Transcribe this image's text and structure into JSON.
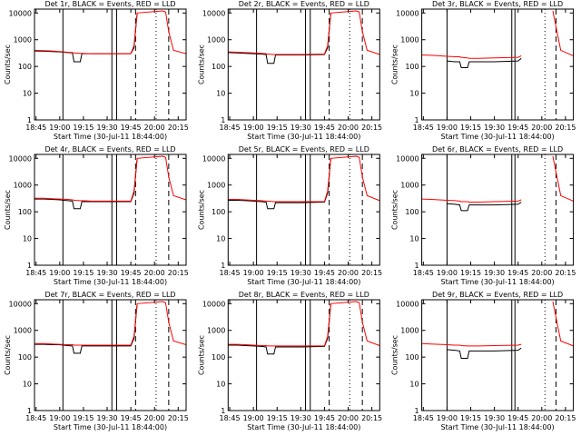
{
  "chart_data": [
    {
      "type": "line",
      "title": "Det 1r, BLACK = Events, RED = LLD",
      "x_label": "Start Time (30-Jul-11 18:44:00)",
      "y_label": "Counts/sec",
      "log_scale": true,
      "xlim": [
        "18:44",
        "20:20"
      ],
      "ylim": [
        1,
        14000
      ],
      "xticks": [
        "18:45",
        "19:00",
        "19:15",
        "19:30",
        "19:45",
        "20:00",
        "20:15"
      ],
      "yticks": [
        1,
        10,
        100,
        1000,
        10000
      ],
      "x": [
        "18:44",
        "18:50",
        "18:55",
        "19:00",
        "19:05",
        "19:08",
        "19:09",
        "19:13",
        "19:14",
        "19:20",
        "19:30",
        "19:45",
        "19:47",
        "19:49",
        "20:05",
        "20:07",
        "20:09",
        "20:12",
        "20:20"
      ],
      "series": [
        {
          "color": "#000000",
          "values": [
            380,
            370,
            360,
            350,
            330,
            320,
            150,
            150,
            300,
            300,
            300,
            300,
            500,
            10000,
            null,
            null,
            null,
            null,
            null
          ]
        },
        {
          "color": "#ff0000",
          "values": [
            400,
            390,
            380,
            360,
            340,
            330,
            320,
            310,
            310,
            300,
            300,
            300,
            600,
            10000,
            12000,
            11000,
            2000,
            400,
            300
          ]
        }
      ],
      "vlines": [
        {
          "x": "19:02",
          "style": "solid"
        },
        {
          "x": "19:33",
          "style": "solid"
        },
        {
          "x": "19:36",
          "style": "solid"
        },
        {
          "x": "19:48",
          "style": "dashed"
        },
        {
          "x": "20:01",
          "style": "dotted"
        },
        {
          "x": "20:09",
          "style": "dashed"
        }
      ]
    },
    {
      "type": "line",
      "title": "Det 2r, BLACK = Events, RED = LLD",
      "x_label": "Start Time (30-Jul-11 18:44:00)",
      "y_label": "Counts/sec",
      "log_scale": true,
      "xlim": [
        "18:44",
        "20:20"
      ],
      "ylim": [
        1,
        14000
      ],
      "xticks": [
        "18:45",
        "19:00",
        "19:15",
        "19:30",
        "19:45",
        "20:00",
        "20:15"
      ],
      "yticks": [
        1,
        10,
        100,
        1000,
        10000
      ],
      "x": [
        "18:44",
        "18:50",
        "18:55",
        "19:00",
        "19:05",
        "19:08",
        "19:09",
        "19:13",
        "19:14",
        "19:20",
        "19:30",
        "19:45",
        "19:47",
        "19:49",
        "20:05",
        "20:07",
        "20:09",
        "20:12",
        "20:20"
      ],
      "series": [
        {
          "color": "#000000",
          "values": [
            330,
            320,
            310,
            300,
            290,
            280,
            130,
            130,
            270,
            270,
            270,
            280,
            500,
            10000,
            null,
            null,
            null,
            null,
            null
          ]
        },
        {
          "color": "#ff0000",
          "values": [
            350,
            340,
            330,
            320,
            310,
            300,
            290,
            280,
            280,
            280,
            280,
            290,
            600,
            10000,
            12000,
            11000,
            2000,
            400,
            280
          ]
        }
      ],
      "vlines": [
        {
          "x": "19:02",
          "style": "solid"
        },
        {
          "x": "19:33",
          "style": "solid"
        },
        {
          "x": "19:36",
          "style": "solid"
        },
        {
          "x": "19:48",
          "style": "dashed"
        },
        {
          "x": "20:01",
          "style": "dotted"
        },
        {
          "x": "20:09",
          "style": "dashed"
        }
      ]
    },
    {
      "type": "line",
      "title": "Det 3r, BLACK = Events, RED = LLD",
      "x_label": "Start Time (30-Jul-11 18:44:00)",
      "y_label": "Counts/sec",
      "log_scale": true,
      "xlim": [
        "18:44",
        "20:20"
      ],
      "ylim": [
        1,
        14000
      ],
      "xticks": [
        "18:45",
        "19:00",
        "19:15",
        "19:30",
        "19:45",
        "20:00",
        "20:15"
      ],
      "yticks": [
        1,
        10,
        100,
        1000,
        10000
      ],
      "x": [
        "18:44",
        "18:50",
        "18:55",
        "19:00",
        "19:05",
        "19:08",
        "19:09",
        "19:13",
        "19:14",
        "19:20",
        "19:30",
        "19:45",
        "19:47",
        "19:49",
        "20:05",
        "20:07",
        "20:09",
        "20:12",
        "20:20"
      ],
      "series": [
        {
          "color": "#000000",
          "values": [
            null,
            null,
            null,
            160,
            150,
            150,
            90,
            90,
            150,
            150,
            150,
            160,
            200,
            null,
            null,
            null,
            null,
            null,
            null
          ]
        },
        {
          "color": "#ff0000",
          "values": [
            270,
            260,
            250,
            240,
            230,
            230,
            220,
            210,
            200,
            200,
            210,
            220,
            250,
            null,
            null,
            12000,
            3000,
            400,
            250
          ]
        }
      ],
      "vlines": [
        {
          "x": "19:00",
          "style": "solid"
        },
        {
          "x": "19:41",
          "style": "solid"
        },
        {
          "x": "19:43",
          "style": "solid"
        },
        {
          "x": "20:02",
          "style": "dotted"
        },
        {
          "x": "20:09",
          "style": "dashed"
        }
      ]
    },
    {
      "type": "line",
      "title": "Det 4r, BLACK = Events, RED = LLD",
      "x_label": "Start Time (30-Jul-11 18:44:00)",
      "y_label": "Counts/sec",
      "log_scale": true,
      "xlim": [
        "18:44",
        "20:20"
      ],
      "ylim": [
        1,
        14000
      ],
      "xticks": [
        "18:45",
        "19:00",
        "19:15",
        "19:30",
        "19:45",
        "20:00",
        "20:15"
      ],
      "yticks": [
        1,
        10,
        100,
        1000,
        10000
      ],
      "x": [
        "18:44",
        "18:50",
        "18:55",
        "19:00",
        "19:05",
        "19:08",
        "19:09",
        "19:13",
        "19:14",
        "19:20",
        "19:30",
        "19:45",
        "19:47",
        "19:49",
        "20:05",
        "20:07",
        "20:09",
        "20:12",
        "20:20"
      ],
      "series": [
        {
          "color": "#000000",
          "values": [
            300,
            300,
            290,
            280,
            260,
            250,
            130,
            130,
            240,
            240,
            240,
            240,
            500,
            10000,
            null,
            null,
            null,
            null,
            null
          ]
        },
        {
          "color": "#ff0000",
          "values": [
            320,
            320,
            310,
            300,
            290,
            280,
            270,
            260,
            260,
            250,
            250,
            250,
            600,
            10000,
            12000,
            11000,
            2000,
            400,
            280
          ]
        }
      ],
      "vlines": [
        {
          "x": "19:02",
          "style": "solid"
        },
        {
          "x": "19:33",
          "style": "solid"
        },
        {
          "x": "19:36",
          "style": "solid"
        },
        {
          "x": "19:48",
          "style": "dashed"
        },
        {
          "x": "20:01",
          "style": "dotted"
        },
        {
          "x": "20:09",
          "style": "dashed"
        }
      ]
    },
    {
      "type": "line",
      "title": "Det 5r, BLACK = Events, RED = LLD",
      "x_label": "Start Time (30-Jul-11 18:44:00)",
      "y_label": "Counts/sec",
      "log_scale": true,
      "xlim": [
        "18:44",
        "20:20"
      ],
      "ylim": [
        1,
        14000
      ],
      "xticks": [
        "18:45",
        "19:00",
        "19:15",
        "19:30",
        "19:45",
        "20:00",
        "20:15"
      ],
      "yticks": [
        1,
        10,
        100,
        1000,
        10000
      ],
      "x": [
        "18:44",
        "18:50",
        "18:55",
        "19:00",
        "19:05",
        "19:08",
        "19:09",
        "19:13",
        "19:14",
        "19:20",
        "19:30",
        "19:45",
        "19:47",
        "19:49",
        "20:05",
        "20:07",
        "20:09",
        "20:12",
        "20:20"
      ],
      "series": [
        {
          "color": "#000000",
          "values": [
            270,
            270,
            260,
            250,
            240,
            230,
            130,
            130,
            220,
            220,
            220,
            230,
            500,
            10000,
            null,
            null,
            null,
            null,
            null
          ]
        },
        {
          "color": "#ff0000",
          "values": [
            290,
            290,
            280,
            270,
            260,
            250,
            250,
            240,
            240,
            240,
            240,
            240,
            600,
            10000,
            12000,
            11000,
            2000,
            400,
            260
          ]
        }
      ],
      "vlines": [
        {
          "x": "19:02",
          "style": "solid"
        },
        {
          "x": "19:33",
          "style": "solid"
        },
        {
          "x": "19:36",
          "style": "solid"
        },
        {
          "x": "19:48",
          "style": "dashed"
        },
        {
          "x": "20:01",
          "style": "dotted"
        },
        {
          "x": "20:09",
          "style": "dashed"
        }
      ]
    },
    {
      "type": "line",
      "title": "Det 6r, BLACK = Events, RED = LLD",
      "x_label": "Start Time (30-Jul-11 18:44:00)",
      "y_label": "Counts/sec",
      "log_scale": true,
      "xlim": [
        "18:44",
        "20:20"
      ],
      "ylim": [
        1,
        14000
      ],
      "xticks": [
        "18:45",
        "19:00",
        "19:15",
        "19:30",
        "19:45",
        "20:00",
        "20:15"
      ],
      "yticks": [
        1,
        10,
        100,
        1000,
        10000
      ],
      "x": [
        "18:44",
        "18:50",
        "18:55",
        "19:00",
        "19:05",
        "19:08",
        "19:09",
        "19:13",
        "19:14",
        "19:20",
        "19:30",
        "19:45",
        "19:47",
        "19:49",
        "20:05",
        "20:07",
        "20:09",
        "20:12",
        "20:20"
      ],
      "series": [
        {
          "color": "#000000",
          "values": [
            null,
            null,
            null,
            200,
            190,
            180,
            110,
            110,
            180,
            180,
            180,
            190,
            230,
            null,
            null,
            null,
            null,
            null,
            null
          ]
        },
        {
          "color": "#ff0000",
          "values": [
            300,
            290,
            280,
            270,
            260,
            250,
            240,
            240,
            230,
            230,
            240,
            250,
            280,
            null,
            null,
            12000,
            3000,
            400,
            250
          ]
        }
      ],
      "vlines": [
        {
          "x": "19:00",
          "style": "solid"
        },
        {
          "x": "19:41",
          "style": "solid"
        },
        {
          "x": "19:43",
          "style": "solid"
        },
        {
          "x": "20:02",
          "style": "dotted"
        },
        {
          "x": "20:09",
          "style": "dashed"
        }
      ]
    },
    {
      "type": "line",
      "title": "Det 7r, BLACK = Events, RED = LLD",
      "x_label": "Start Time (30-Jul-11 18:44:00)",
      "y_label": "Counts/sec",
      "log_scale": true,
      "xlim": [
        "18:44",
        "20:20"
      ],
      "ylim": [
        1,
        14000
      ],
      "xticks": [
        "18:45",
        "19:00",
        "19:15",
        "19:30",
        "19:45",
        "20:00",
        "20:15"
      ],
      "yticks": [
        1,
        10,
        100,
        1000,
        10000
      ],
      "x": [
        "18:44",
        "18:50",
        "18:55",
        "19:00",
        "19:05",
        "19:08",
        "19:09",
        "19:13",
        "19:14",
        "19:20",
        "19:30",
        "19:45",
        "19:47",
        "19:49",
        "20:05",
        "20:07",
        "20:09",
        "20:12",
        "20:20"
      ],
      "series": [
        {
          "color": "#000000",
          "values": [
            300,
            300,
            290,
            290,
            270,
            260,
            140,
            140,
            260,
            260,
            260,
            260,
            500,
            10000,
            null,
            null,
            null,
            null,
            null
          ]
        },
        {
          "color": "#ff0000",
          "values": [
            320,
            320,
            310,
            300,
            290,
            290,
            280,
            280,
            280,
            280,
            280,
            280,
            600,
            10000,
            12000,
            11000,
            2000,
            400,
            290
          ]
        }
      ],
      "vlines": [
        {
          "x": "19:02",
          "style": "solid"
        },
        {
          "x": "19:33",
          "style": "solid"
        },
        {
          "x": "19:36",
          "style": "solid"
        },
        {
          "x": "19:48",
          "style": "dashed"
        },
        {
          "x": "20:01",
          "style": "dotted"
        },
        {
          "x": "20:09",
          "style": "dashed"
        }
      ]
    },
    {
      "type": "line",
      "title": "Det 8r, BLACK = Events, RED = LLD",
      "x_label": "Start Time (30-Jul-11 18:44:00)",
      "y_label": "Counts/sec",
      "log_scale": true,
      "xlim": [
        "18:44",
        "20:20"
      ],
      "ylim": [
        1,
        14000
      ],
      "xticks": [
        "18:45",
        "19:00",
        "19:15",
        "19:30",
        "19:45",
        "20:00",
        "20:15"
      ],
      "yticks": [
        1,
        10,
        100,
        1000,
        10000
      ],
      "x": [
        "18:44",
        "18:50",
        "18:55",
        "19:00",
        "19:05",
        "19:08",
        "19:09",
        "19:13",
        "19:14",
        "19:20",
        "19:30",
        "19:45",
        "19:47",
        "19:49",
        "20:05",
        "20:07",
        "20:09",
        "20:12",
        "20:20"
      ],
      "series": [
        {
          "color": "#000000",
          "values": [
            280,
            280,
            270,
            260,
            250,
            240,
            130,
            130,
            240,
            240,
            240,
            250,
            500,
            10000,
            null,
            null,
            null,
            null,
            null
          ]
        },
        {
          "color": "#ff0000",
          "values": [
            300,
            300,
            290,
            280,
            270,
            270,
            260,
            260,
            260,
            260,
            260,
            260,
            600,
            10000,
            12000,
            11000,
            2000,
            400,
            270
          ]
        }
      ],
      "vlines": [
        {
          "x": "19:02",
          "style": "solid"
        },
        {
          "x": "19:33",
          "style": "solid"
        },
        {
          "x": "19:36",
          "style": "solid"
        },
        {
          "x": "19:48",
          "style": "dashed"
        },
        {
          "x": "20:01",
          "style": "dotted"
        },
        {
          "x": "20:09",
          "style": "dashed"
        }
      ]
    },
    {
      "type": "line",
      "title": "Det 9r, BLACK = Events, RED = LLD",
      "x_label": "Start Time (30-Jul-11 18:44:00)",
      "y_label": "Counts/sec",
      "log_scale": true,
      "xlim": [
        "18:44",
        "20:20"
      ],
      "ylim": [
        1,
        14000
      ],
      "xticks": [
        "18:45",
        "19:00",
        "19:15",
        "19:30",
        "19:45",
        "20:00",
        "20:15"
      ],
      "yticks": [
        1,
        10,
        100,
        1000,
        10000
      ],
      "x": [
        "18:44",
        "18:50",
        "18:55",
        "19:00",
        "19:05",
        "19:08",
        "19:09",
        "19:13",
        "19:14",
        "19:20",
        "19:30",
        "19:45",
        "19:47",
        "19:49",
        "20:05",
        "20:07",
        "20:09",
        "20:12",
        "20:20"
      ],
      "series": [
        {
          "color": "#000000",
          "values": [
            null,
            null,
            null,
            190,
            180,
            170,
            90,
            90,
            170,
            170,
            170,
            180,
            220,
            null,
            null,
            null,
            null,
            null,
            null
          ]
        },
        {
          "color": "#ff0000",
          "values": [
            320,
            310,
            300,
            290,
            280,
            280,
            270,
            260,
            260,
            260,
            270,
            280,
            300,
            null,
            null,
            12000,
            3000,
            400,
            260
          ]
        }
      ],
      "vlines": [
        {
          "x": "19:00",
          "style": "solid"
        },
        {
          "x": "19:41",
          "style": "solid"
        },
        {
          "x": "19:43",
          "style": "solid"
        },
        {
          "x": "20:02",
          "style": "dotted"
        },
        {
          "x": "20:09",
          "style": "dashed"
        }
      ]
    }
  ]
}
